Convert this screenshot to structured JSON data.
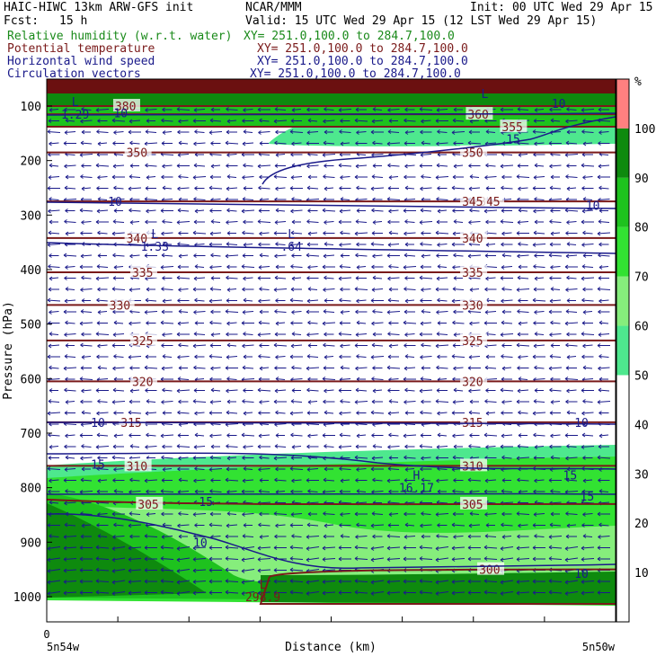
{
  "header": {
    "model": "HAIC-HIWC 13km ARW-GFS init",
    "org": "NCAR/MMM",
    "init": "Init: 00 UTC Wed 29 Apr 15",
    "fcst_label": "Fcst:",
    "fcst_value": "15 h",
    "valid": "Valid: 15 UTC Wed 29 Apr 15 (12 LST Wed 29 Apr 15)"
  },
  "fields": [
    {
      "name": "Relative humidity (w.r.t. water)",
      "xy": "XY= 251.0,100.0 to 284.7,100.0",
      "color": "#1a8a1a"
    },
    {
      "name": "Potential temperature",
      "xy": "XY= 251.0,100.0 to 284.7,100.0",
      "color": "#7a1a1a"
    },
    {
      "name": "Horizontal wind speed",
      "xy": "XY= 251.0,100.0 to 284.7,100.0",
      "color": "#1a1a8a"
    },
    {
      "name": "Circulation vectors",
      "xy": "XY= 251.0,100.0 to 284.7,100.0",
      "color": "#1a1a8a"
    }
  ],
  "chart_data": {
    "type": "heatmap",
    "ylabel": "Pressure (hPa)",
    "xlabel": "Distance (km)",
    "x_tick_labels": {
      "left_value": "0",
      "left_location": "5n54w",
      "right_location": "5n50w"
    },
    "y_ticks": [
      100,
      200,
      300,
      400,
      500,
      600,
      700,
      800,
      900,
      1000
    ],
    "ylim": [
      1000,
      75
    ],
    "colorbar": {
      "unit": "%",
      "ticks": [
        10,
        20,
        30,
        40,
        50,
        60,
        70,
        80,
        90,
        100
      ],
      "levels": [
        {
          "from": 50,
          "to": 60,
          "color": "#4ee88e"
        },
        {
          "from": 60,
          "to": 70,
          "color": "#86ee7c"
        },
        {
          "from": 70,
          "to": 80,
          "color": "#32e232"
        },
        {
          "from": 80,
          "to": 90,
          "color": "#1ec21e"
        },
        {
          "from": 90,
          "to": 100,
          "color": "#0e8a0e"
        },
        {
          "from": 100,
          "to": 110,
          "color": "#ff8080"
        }
      ]
    },
    "theta_contours": [
      {
        "value": 380,
        "pressure": 100
      },
      {
        "value": 360,
        "pressure": 115
      },
      {
        "value": 355,
        "pressure": 138
      },
      {
        "value": 350,
        "pressure": 185
      },
      {
        "value": 345,
        "pressure": 275
      },
      {
        "value": 340,
        "pressure": 342
      },
      {
        "value": 335,
        "pressure": 405
      },
      {
        "value": 330,
        "pressure": 465
      },
      {
        "value": 325,
        "pressure": 530
      },
      {
        "value": 320,
        "pressure": 605
      },
      {
        "value": 315,
        "pressure": 680
      },
      {
        "value": 310,
        "pressure": 760
      },
      {
        "value": 305,
        "pressure": 830
      },
      {
        "value": 300,
        "pressure": 950
      }
    ],
    "wind_labels": [
      {
        "text": "10",
        "x": 0.13,
        "pressure": 112
      },
      {
        "text": "10",
        "x": 0.9,
        "pressure": 95
      },
      {
        "text": "15",
        "x": 0.82,
        "pressure": 160
      },
      {
        "text": "10",
        "x": 0.12,
        "pressure": 275
      },
      {
        "text": "10",
        "x": 0.96,
        "pressure": 282
      },
      {
        "text": "10",
        "x": 0.09,
        "pressure": 680
      },
      {
        "text": "10",
        "x": 0.94,
        "pressure": 680
      },
      {
        "text": "15",
        "x": 0.09,
        "pressure": 757
      },
      {
        "text": "15",
        "x": 0.92,
        "pressure": 777
      },
      {
        "text": "15",
        "x": 0.28,
        "pressure": 825
      },
      {
        "text": "15",
        "x": 0.95,
        "pressure": 815
      },
      {
        "text": "10",
        "x": 0.27,
        "pressure": 900
      },
      {
        "text": "10",
        "x": 0.94,
        "pressure": 957
      }
    ],
    "extrema": [
      {
        "type": "L",
        "value": "1.33",
        "x": 0.19,
        "pressure": 342
      },
      {
        "type": "L",
        "value": ".64",
        "x": 0.43,
        "pressure": 342
      },
      {
        "type": "H",
        "value": "16.17",
        "x": 0.65,
        "pressure": 785
      },
      {
        "type": "L",
        "value": "298.9",
        "x": 0.38,
        "pressure": 985
      },
      {
        "type": "L",
        "value": "1.29",
        "x": 0.05,
        "pressure": 100
      },
      {
        "type": "L",
        "value": "",
        "x": 0.77,
        "pressure": 85
      }
    ]
  }
}
